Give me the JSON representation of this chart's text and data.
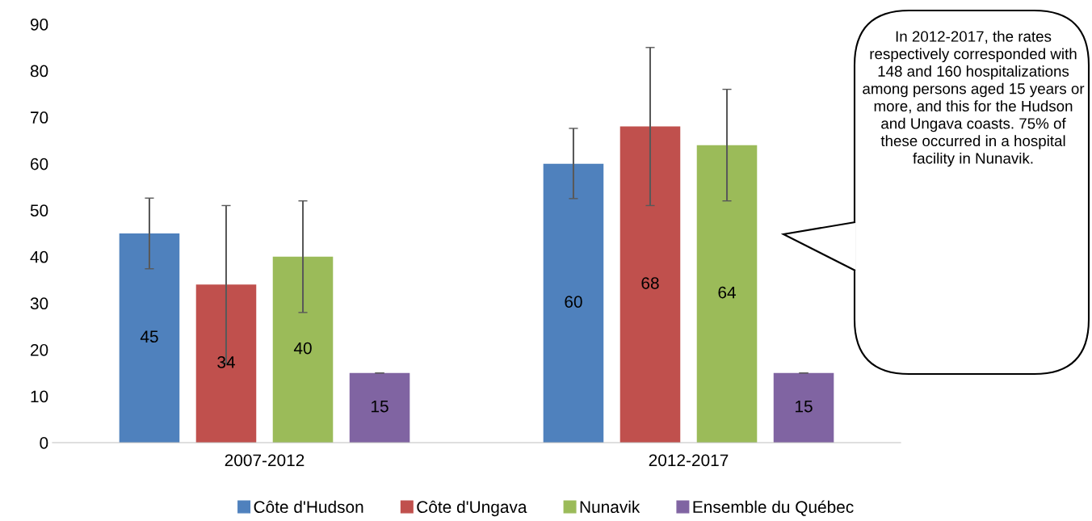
{
  "chart_data": {
    "type": "bar",
    "categories": [
      "2007-2012",
      "2012-2017"
    ],
    "series": [
      {
        "name": "Côte d'Hudson",
        "color": "#4f81bd",
        "values": [
          45,
          60
        ],
        "errors": [
          [
            37.4,
            52.6
          ],
          [
            52.5,
            67.6
          ]
        ]
      },
      {
        "name": "Côte d'Ungava",
        "color": "#c0504d",
        "values": [
          34,
          68
        ],
        "errors": [
          [
            17,
            51
          ],
          [
            51,
            85
          ]
        ]
      },
      {
        "name": "Nunavik",
        "color": "#9bbb59",
        "values": [
          40,
          64
        ],
        "errors": [
          [
            28,
            52
          ],
          [
            52,
            76
          ]
        ]
      },
      {
        "name": "Ensemble du Québec",
        "color": "#8064a2",
        "values": [
          15,
          15
        ],
        "errors": [
          [
            15,
            15
          ],
          [
            15,
            15
          ]
        ]
      }
    ],
    "ylim": [
      0,
      90
    ],
    "yticks": [
      0,
      10,
      20,
      30,
      40,
      50,
      60,
      70,
      80,
      90
    ],
    "data_labels": true,
    "grid": false,
    "legend": "bottom",
    "annotations": [
      "In 2012-2017, the rates respectively corresponded with 148 and 160 hospitalizations among persons aged 15 years or more, and this for the Hudson and Ungava coasts. 75% of these occurred in a hospital facility in Nunavik."
    ]
  }
}
